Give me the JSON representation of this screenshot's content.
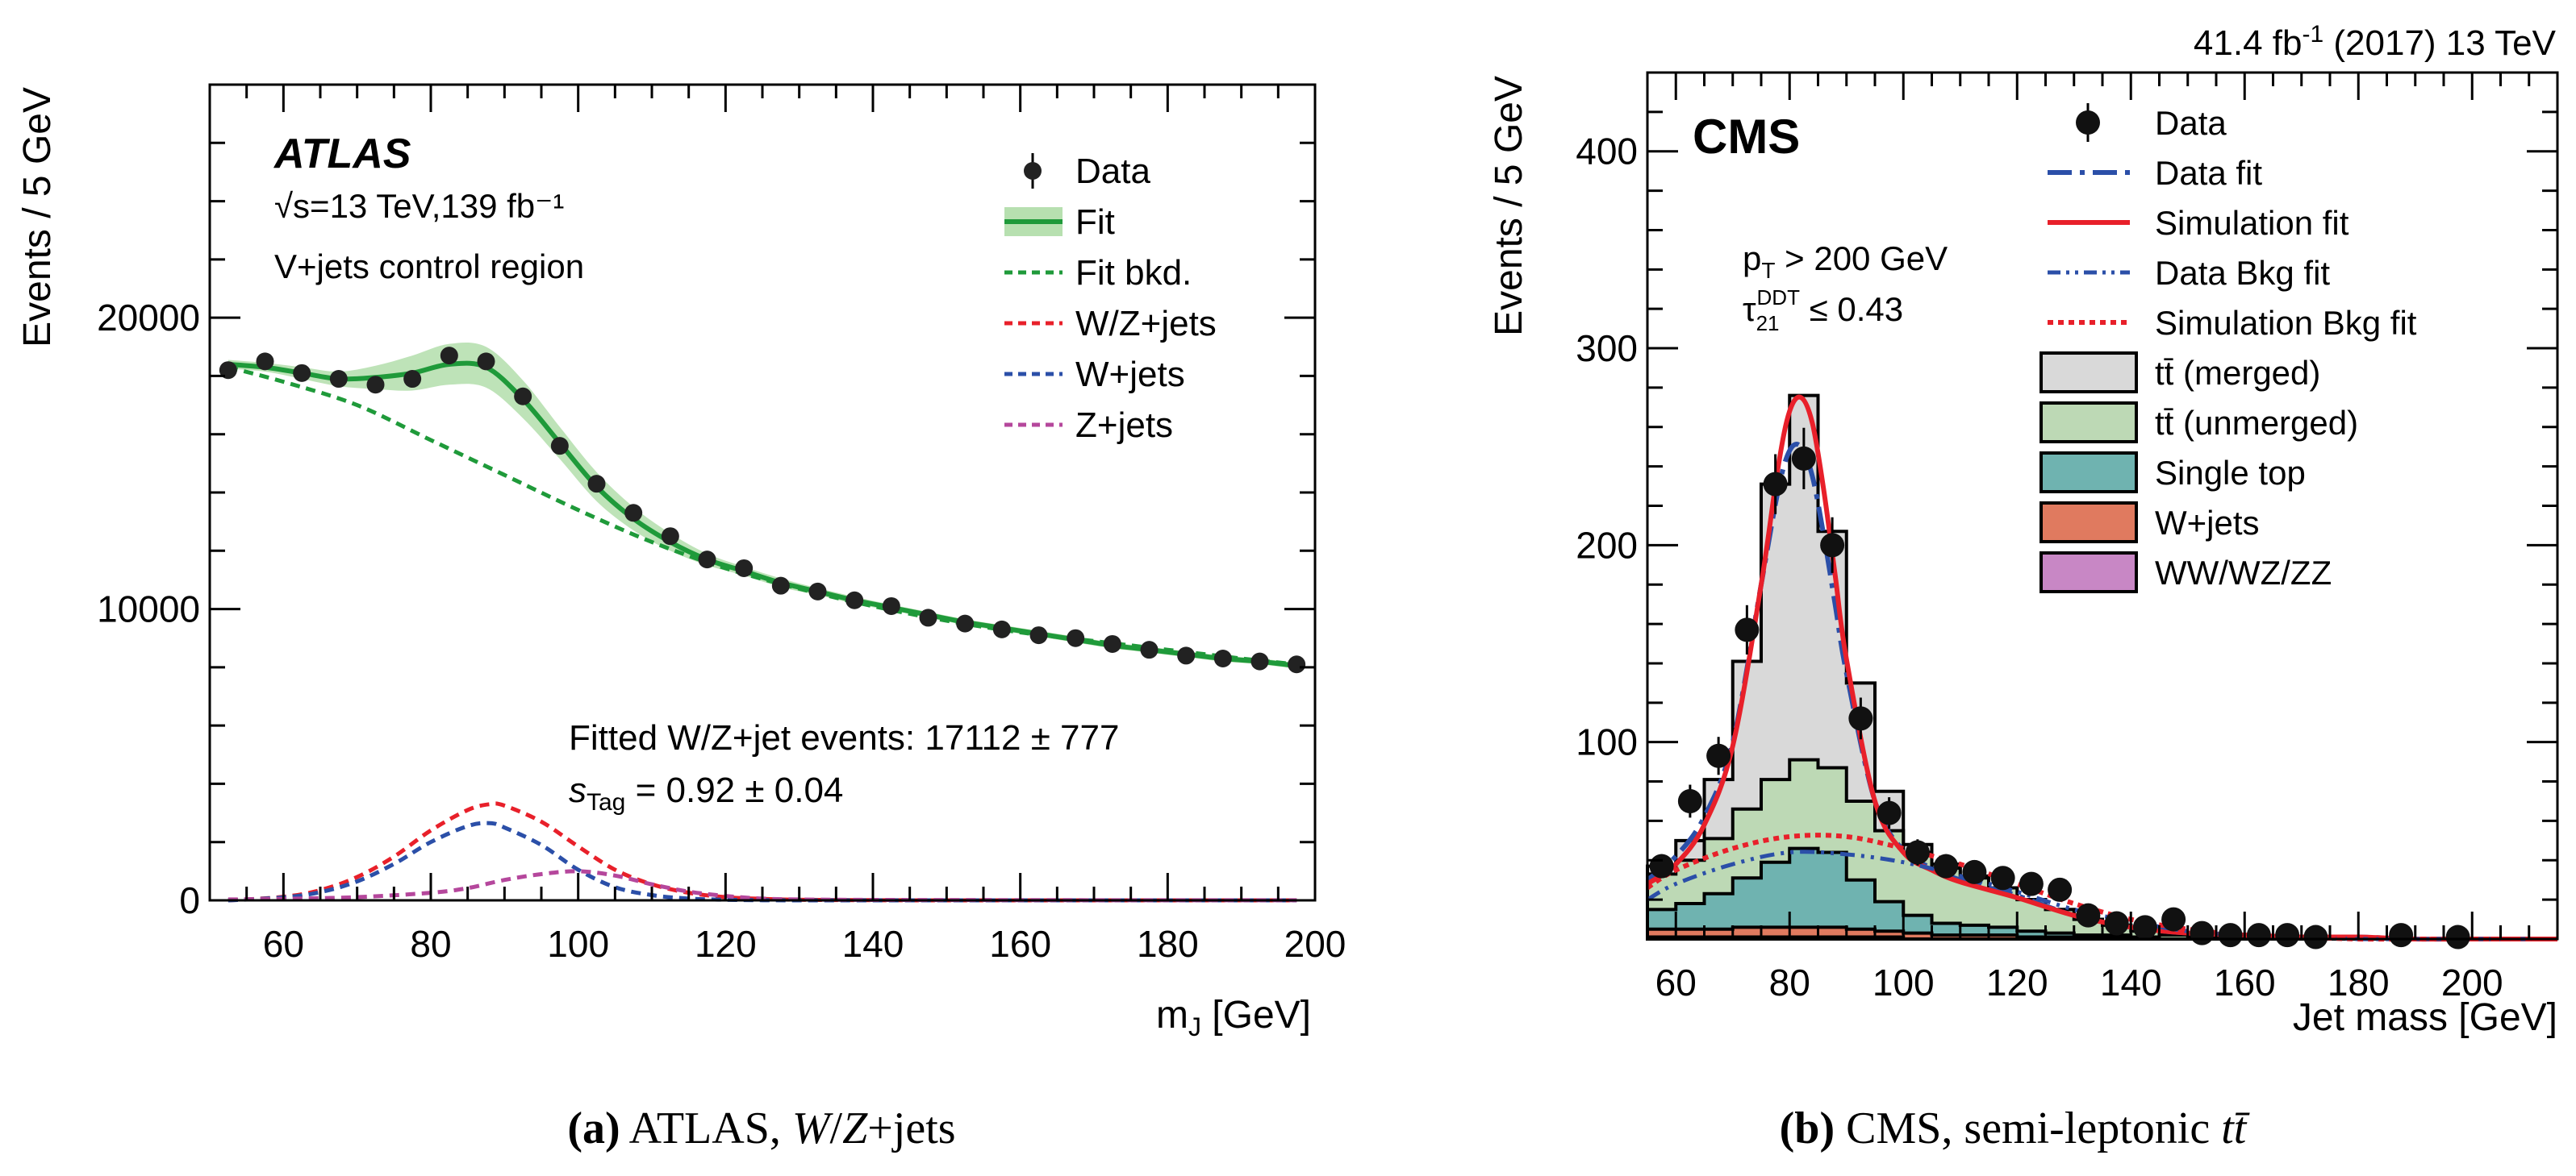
{
  "chart_data": [
    {
      "type": "line",
      "panel": "a",
      "caption_label": "(a)",
      "caption_text": "ATLAS, W/Z+jets",
      "experiment": "ATLAS",
      "energy_lumi": "√s=13 TeV,139 fb⁻¹",
      "region": "V+jets control region",
      "xlabel": "m_J [GeV]",
      "ylabel": "Events / 5 GeV",
      "xlim": [
        50,
        200
      ],
      "ylim": [
        0,
        28000
      ],
      "xticks": [
        60,
        80,
        100,
        120,
        140,
        160,
        180,
        200
      ],
      "yticks": [
        0,
        10000,
        20000
      ],
      "annotation_1": "Fitted W/Z+jet events: 17112 ± 777",
      "annotation_2": "s_Tag = 0.92 ± 0.04",
      "legend": [
        "Data",
        "Fit",
        "Fit bkd.",
        "W/Z+jets",
        "W+jets",
        "Z+jets"
      ],
      "data_points": {
        "x": [
          52.5,
          57.5,
          62.5,
          67.5,
          72.5,
          77.5,
          82.5,
          87.5,
          92.5,
          97.5,
          102.5,
          107.5,
          112.5,
          117.5,
          122.5,
          127.5,
          132.5,
          137.5,
          142.5,
          147.5,
          152.5,
          157.5,
          162.5,
          167.5,
          172.5,
          177.5,
          182.5,
          187.5,
          192.5,
          197.5
        ],
        "y": [
          18200,
          18500,
          18100,
          17900,
          17700,
          17900,
          18700,
          18500,
          17300,
          15600,
          14300,
          13300,
          12500,
          11700,
          11400,
          10800,
          10600,
          10300,
          10100,
          9700,
          9500,
          9300,
          9100,
          9000,
          8800,
          8600,
          8400,
          8300,
          8200,
          8100
        ]
      },
      "series": [
        {
          "name": "Fit",
          "color": "#1f9a3a",
          "x": [
            52.5,
            57.5,
            62.5,
            67.5,
            72.5,
            77.5,
            82.5,
            87.5,
            92.5,
            97.5,
            102.5,
            107.5,
            112.5,
            117.5,
            122.5,
            127.5,
            132.5,
            137.5,
            142.5,
            147.5,
            152.5,
            157.5,
            162.5,
            167.5,
            172.5,
            177.5,
            182.5,
            187.5,
            192.5,
            197.5
          ],
          "y": [
            18400,
            18300,
            18100,
            17900,
            17950,
            18100,
            18400,
            18300,
            17200,
            15700,
            14200,
            13100,
            12300,
            11700,
            11300,
            10900,
            10600,
            10300,
            10050,
            9800,
            9550,
            9350,
            9150,
            8950,
            8750,
            8600,
            8450,
            8300,
            8200,
            8050
          ]
        },
        {
          "name": "Fit bkd.",
          "color": "#1f9a3a",
          "x": [
            52.5,
            60,
            70,
            80,
            90,
            100,
            110,
            120,
            130,
            140,
            150,
            160,
            170,
            180,
            190,
            197.5
          ],
          "y": [
            18300,
            17800,
            17000,
            15800,
            14600,
            13400,
            12300,
            11400,
            10700,
            10100,
            9600,
            9200,
            8900,
            8600,
            8300,
            8100
          ]
        },
        {
          "name": "W/Z+jets",
          "color": "#e8202a",
          "x": [
            52.5,
            60,
            65,
            70,
            75,
            80,
            85,
            88,
            90,
            95,
            100,
            105,
            110,
            115,
            120,
            125,
            130,
            140,
            150,
            160,
            170,
            180,
            190,
            197.5
          ],
          "y": [
            0,
            120,
            350,
            800,
            1500,
            2400,
            3100,
            3300,
            3250,
            2700,
            1850,
            1050,
            550,
            260,
            110,
            50,
            20,
            5,
            0,
            0,
            0,
            0,
            0,
            0
          ]
        },
        {
          "name": "W+jets",
          "color": "#2b4fa8",
          "x": [
            52.5,
            60,
            65,
            70,
            75,
            80,
            85,
            88,
            90,
            95,
            100,
            105,
            110,
            115,
            120,
            125,
            130,
            140,
            150,
            160,
            170,
            180,
            190,
            197.5
          ],
          "y": [
            0,
            100,
            280,
            650,
            1250,
            2000,
            2550,
            2650,
            2500,
            1900,
            1050,
            450,
            180,
            60,
            20,
            5,
            0,
            0,
            0,
            0,
            0,
            0,
            0,
            0
          ]
        },
        {
          "name": "Z+jets",
          "color": "#b5479c",
          "x": [
            52.5,
            60,
            70,
            80,
            85,
            90,
            95,
            100,
            105,
            110,
            115,
            120,
            125,
            130,
            140,
            150,
            160,
            170,
            180,
            190,
            197.5
          ],
          "y": [
            30,
            50,
            110,
            260,
            420,
            700,
            900,
            1000,
            850,
            550,
            300,
            150,
            60,
            30,
            15,
            10,
            8,
            5,
            5,
            5,
            5
          ]
        }
      ],
      "fit_band_halfwidth": [
        150,
        150,
        200,
        250,
        400,
        600,
        700,
        700,
        650,
        550,
        500,
        400,
        300,
        200,
        150,
        150,
        120,
        120,
        100,
        100,
        100,
        100,
        100,
        100,
        100,
        100,
        100,
        100,
        100,
        100
      ]
    },
    {
      "type": "bar",
      "panel": "b",
      "caption_label": "(b)",
      "caption_text": "CMS, semi-leptonic tt̄",
      "experiment": "CMS",
      "lumi_text": "41.4 fb⁻¹ (2017) 13 TeV",
      "cut_1": "p_T > 200 GeV",
      "cut_2": "τ21 DDT ≤ 0.43",
      "xlabel": "Jet mass [GeV]",
      "ylabel": "Events / 5 GeV",
      "xlim": [
        55,
        215
      ],
      "ylim": [
        0,
        440
      ],
      "xticks": [
        60,
        80,
        100,
        120,
        140,
        160,
        180,
        200
      ],
      "yticks": [
        100,
        200,
        300,
        400
      ],
      "legend": [
        "Data",
        "Data fit",
        "Simulation fit",
        "Data Bkg fit",
        "Simulation Bkg fit",
        "tt̄ (merged)",
        "tt̄ (unmerged)",
        "Single top",
        "W+jets",
        "WW/WZ/ZZ"
      ],
      "bin_edges": [
        55,
        60,
        65,
        70,
        75,
        80,
        85,
        90,
        95,
        100,
        105,
        110,
        115,
        120,
        125,
        130,
        135,
        140,
        145,
        150,
        155,
        160,
        165,
        170,
        175,
        180,
        185,
        190,
        195,
        200,
        205,
        210,
        215
      ],
      "stacks": [
        {
          "name": "WW/WZ/ZZ",
          "color": "#c887c5",
          "values": [
            1,
            1,
            1,
            1,
            1,
            1,
            1,
            1,
            1,
            0,
            0,
            0,
            0,
            0,
            0,
            0,
            0,
            0,
            0,
            0,
            0,
            0,
            0,
            0,
            0,
            0,
            0,
            0,
            0,
            0,
            0,
            0
          ]
        },
        {
          "name": "W+jets",
          "color": "#e07a5f",
          "values": [
            4,
            4,
            4,
            5,
            5,
            5,
            5,
            4,
            3,
            3,
            2,
            2,
            2,
            1,
            1,
            1,
            1,
            0,
            0,
            0,
            0,
            0,
            0,
            0,
            0,
            0,
            0,
            0,
            0,
            0,
            0,
            0
          ]
        },
        {
          "name": "Single top",
          "color": "#6fb3b0",
          "values": [
            10,
            13,
            18,
            25,
            33,
            40,
            38,
            25,
            15,
            9,
            6,
            5,
            4,
            3,
            2,
            1,
            1,
            1,
            0,
            0,
            0,
            0,
            0,
            0,
            0,
            0,
            0,
            0,
            0,
            0,
            0,
            0
          ]
        },
        {
          "name": "tt̄ (unmerged)",
          "color": "#bdd9b5",
          "values": [
            18,
            22,
            28,
            35,
            42,
            45,
            43,
            40,
            36,
            32,
            28,
            24,
            20,
            16,
            12,
            8,
            5,
            3,
            2,
            1,
            1,
            1,
            0,
            0,
            0,
            0,
            0,
            0,
            0,
            0,
            0,
            0
          ]
        },
        {
          "name": "tt̄ (merged)",
          "color": "#d9d9d9",
          "values": [
            4,
            10,
            30,
            75,
            150,
            185,
            120,
            60,
            20,
            4,
            2,
            1,
            0,
            0,
            0,
            0,
            0,
            0,
            0,
            0,
            0,
            0,
            0,
            0,
            0,
            0,
            0,
            0,
            0,
            0,
            0,
            0
          ]
        }
      ],
      "data_points": {
        "x": [
          57.5,
          62.5,
          67.5,
          72.5,
          77.5,
          82.5,
          87.5,
          92.5,
          97.5,
          102.5,
          107.5,
          112.5,
          117.5,
          122.5,
          127.5,
          132.5,
          137.5,
          142.5,
          147.5,
          152.5,
          157.5,
          162.5,
          167.5,
          172.5,
          187.5,
          197.5
        ],
        "y": [
          37,
          70,
          93,
          157,
          231,
          244,
          200,
          112,
          64,
          44,
          37,
          34,
          31,
          28,
          25,
          12,
          8,
          6,
          10,
          3,
          2,
          2,
          2,
          1,
          2,
          1
        ]
      },
      "series": [
        {
          "name": "Data fit",
          "color": "#2b4fa8",
          "x": [
            55,
            60,
            65,
            70,
            75,
            78,
            80,
            82,
            84,
            86,
            88,
            90,
            95,
            100,
            105,
            110,
            120,
            130,
            140,
            150,
            160,
            170,
            180,
            190,
            200,
            215
          ],
          "y": [
            30,
            42,
            62,
            100,
            180,
            228,
            248,
            250,
            235,
            205,
            170,
            135,
            70,
            45,
            36,
            30,
            22,
            12,
            6,
            3,
            2,
            1,
            1,
            0,
            0,
            0
          ]
        },
        {
          "name": "Simulation fit",
          "color": "#e8202a",
          "x": [
            55,
            60,
            65,
            70,
            75,
            78,
            80,
            82,
            84,
            86,
            88,
            90,
            95,
            100,
            105,
            110,
            120,
            130,
            140,
            150,
            160,
            170,
            180,
            190,
            200,
            215
          ],
          "y": [
            28,
            38,
            58,
            98,
            180,
            240,
            268,
            275,
            262,
            228,
            185,
            142,
            70,
            44,
            35,
            29,
            21,
            12,
            6,
            3,
            2,
            1,
            1,
            0,
            0,
            0
          ]
        },
        {
          "name": "Data Bkg fit",
          "color": "#2b4fa8",
          "x": [
            55,
            60,
            70,
            80,
            90,
            100,
            110,
            120,
            130,
            140,
            150,
            160,
            170,
            180,
            190,
            200,
            215
          ],
          "y": [
            20,
            28,
            38,
            44,
            43,
            39,
            32,
            24,
            15,
            9,
            4,
            2,
            1,
            0,
            0,
            0,
            0
          ]
        },
        {
          "name": "Simulation Bkg fit",
          "color": "#e8202a",
          "x": [
            55,
            60,
            70,
            80,
            90,
            100,
            110,
            120,
            130,
            140,
            150,
            160,
            170,
            180,
            190,
            200,
            215
          ],
          "y": [
            26,
            35,
            46,
            52,
            52,
            46,
            38,
            28,
            18,
            10,
            5,
            2,
            1,
            0,
            0,
            0,
            0
          ]
        }
      ]
    }
  ]
}
